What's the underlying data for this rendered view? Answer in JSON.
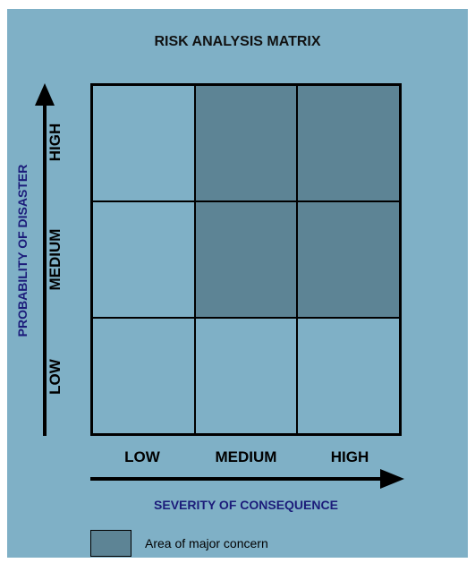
{
  "title": "RISK ANALYSIS MATRIX",
  "x_axis": {
    "title": "SEVERITY OF CONSEQUENCE",
    "levels": [
      "LOW",
      "MEDIUM",
      "HIGH"
    ]
  },
  "y_axis": {
    "title": "PROBABILITY OF DISASTER",
    "levels": [
      "HIGH",
      "MEDIUM",
      "LOW"
    ]
  },
  "matrix": {
    "rows": [
      {
        "probability": "HIGH",
        "cells": [
          false,
          true,
          true
        ]
      },
      {
        "probability": "MEDIUM",
        "cells": [
          false,
          true,
          true
        ]
      },
      {
        "probability": "LOW",
        "cells": [
          false,
          false,
          false
        ]
      }
    ]
  },
  "legend": {
    "label": "Area of major concern"
  },
  "colors": {
    "background": "#7fb0c6",
    "major_concern": "#5d8495",
    "axis_title": "#1c1c7a"
  }
}
